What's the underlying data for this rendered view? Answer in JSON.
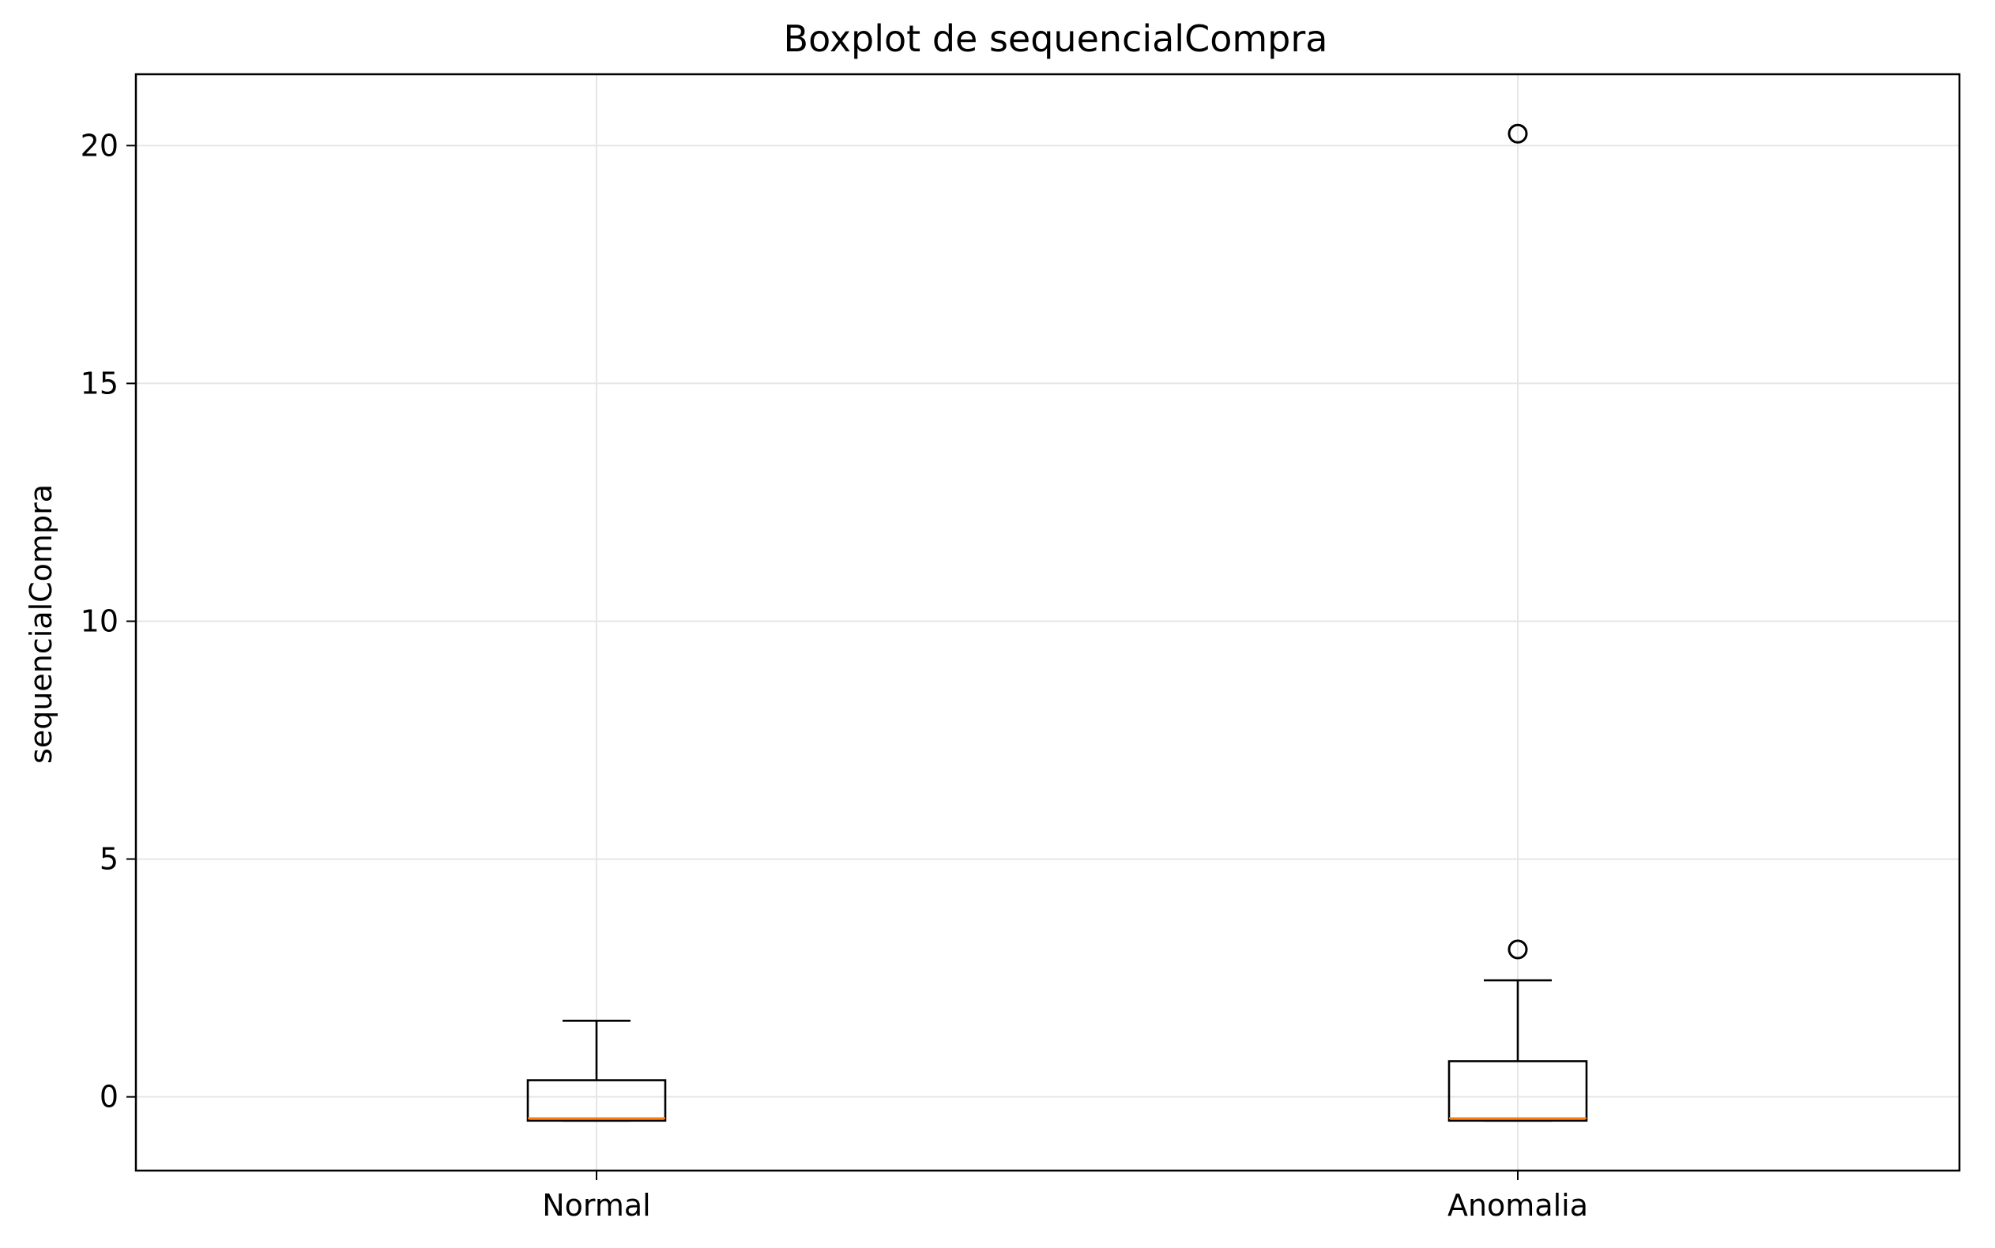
{
  "chart_data": {
    "type": "boxplot",
    "title": "Boxplot de sequencialCompra",
    "xlabel": "",
    "ylabel": "sequencialCompra",
    "categories": [
      "Normal",
      "Anomalia"
    ],
    "boxes": [
      {
        "category": "Normal",
        "whisker_low": -0.5,
        "q1": -0.5,
        "median": -0.45,
        "q3": 0.35,
        "whisker_high": 1.6,
        "outliers": []
      },
      {
        "category": "Anomalia",
        "whisker_low": -0.5,
        "q1": -0.5,
        "median": -0.45,
        "q3": 0.75,
        "whisker_high": 2.45,
        "outliers": [
          3.1,
          20.25
        ]
      }
    ],
    "ylim": [
      -1.55,
      21.5
    ],
    "yticks": [
      0,
      5,
      10,
      15,
      20
    ],
    "grid": true,
    "colors": {
      "box": "#000000",
      "median": "#ff7f0e",
      "grid": "#e6e6e6",
      "outlier": "#000000"
    }
  }
}
